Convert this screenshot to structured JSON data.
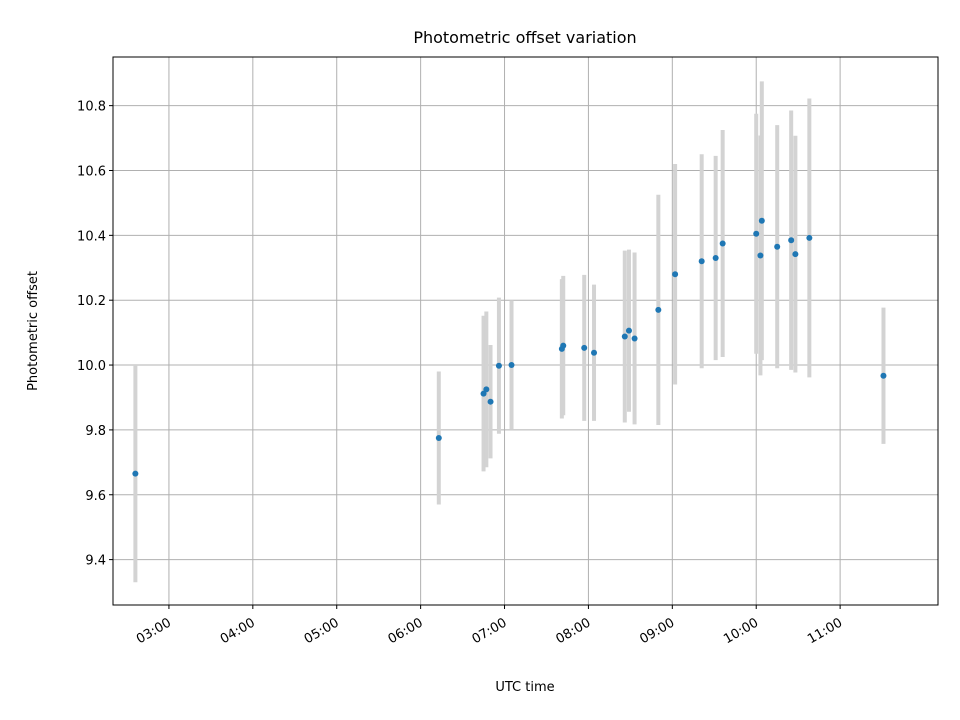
{
  "chart_data": {
    "type": "scatter",
    "title": "Photometric offset variation",
    "xlabel": "UTC time",
    "ylabel": "Photometric offset",
    "grid": true,
    "x_tick_labels": [
      "03:00",
      "04:00",
      "05:00",
      "06:00",
      "07:00",
      "08:00",
      "09:00",
      "10:00",
      "11:00"
    ],
    "y_tick_labels": [
      "9.4",
      "9.6",
      "9.8",
      "10.0",
      "10.2",
      "10.4",
      "10.6",
      "10.8"
    ],
    "xlim": [
      "02:20",
      "12:10"
    ],
    "ylim": [
      9.26,
      10.95
    ],
    "colors": {
      "marker": "#1f77b4",
      "errorbar": "#d3d3d3",
      "grid": "#b0b0b0"
    },
    "points": [
      {
        "x": "02:36",
        "y": 9.665,
        "err": 0.335
      },
      {
        "x": "06:13",
        "y": 9.775,
        "err": 0.205
      },
      {
        "x": "06:45",
        "y": 9.912,
        "err": 0.24
      },
      {
        "x": "06:47",
        "y": 9.925,
        "err": 0.24
      },
      {
        "x": "06:50",
        "y": 9.887,
        "err": 0.175
      },
      {
        "x": "06:56",
        "y": 9.998,
        "err": 0.21
      },
      {
        "x": "07:05",
        "y": 10.0,
        "err": 0.2
      },
      {
        "x": "07:41",
        "y": 10.05,
        "err": 0.215
      },
      {
        "x": "07:42",
        "y": 10.06,
        "err": 0.215
      },
      {
        "x": "07:57",
        "y": 10.053,
        "err": 0.225
      },
      {
        "x": "08:04",
        "y": 10.038,
        "err": 0.21
      },
      {
        "x": "08:26",
        "y": 10.088,
        "err": 0.265
      },
      {
        "x": "08:29",
        "y": 10.106,
        "err": 0.25
      },
      {
        "x": "08:33",
        "y": 10.082,
        "err": 0.265
      },
      {
        "x": "08:50",
        "y": 10.17,
        "err": 0.355
      },
      {
        "x": "09:02",
        "y": 10.28,
        "err": 0.34
      },
      {
        "x": "09:21",
        "y": 10.32,
        "err": 0.33
      },
      {
        "x": "09:31",
        "y": 10.33,
        "err": 0.315
      },
      {
        "x": "09:36",
        "y": 10.375,
        "err": 0.35
      },
      {
        "x": "10:00",
        "y": 10.405,
        "err": 0.37
      },
      {
        "x": "10:03",
        "y": 10.338,
        "err": 0.37
      },
      {
        "x": "10:04",
        "y": 10.445,
        "err": 0.43
      },
      {
        "x": "10:15",
        "y": 10.365,
        "err": 0.375
      },
      {
        "x": "10:25",
        "y": 10.385,
        "err": 0.4
      },
      {
        "x": "10:28",
        "y": 10.342,
        "err": 0.365
      },
      {
        "x": "10:38",
        "y": 10.392,
        "err": 0.43
      },
      {
        "x": "11:31",
        "y": 9.967,
        "err": 0.21
      }
    ]
  }
}
